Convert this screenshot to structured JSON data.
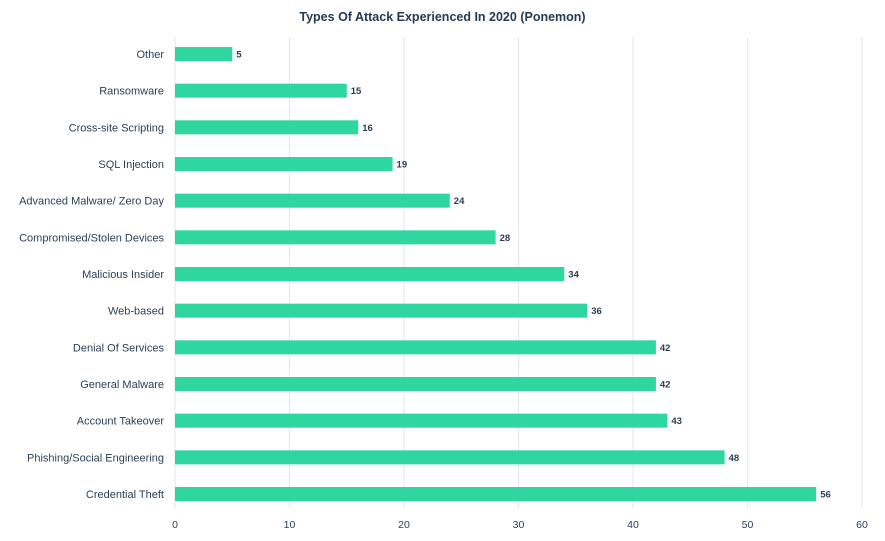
{
  "chart_data": {
    "type": "bar",
    "orientation": "horizontal",
    "title": "Types Of Attack Experienced In 2020 (Ponemon)",
    "xlabel": "",
    "ylabel": "",
    "categories": [
      "Other",
      "Ransomware",
      "Cross-site Scripting",
      "SQL Injection",
      "Advanced Malware/ Zero Day",
      "Compromised/Stolen Devices",
      "Malicious Insider",
      "Web-based",
      "Denial Of Services",
      "General Malware",
      "Account Takeover",
      "Phishing/Social Engineering",
      "Credential Theft"
    ],
    "values": [
      5,
      15,
      16,
      19,
      24,
      28,
      34,
      36,
      42,
      42,
      43,
      48,
      56
    ],
    "xlim": [
      0,
      60
    ],
    "xticks": [
      0,
      10,
      20,
      30,
      40,
      50,
      60
    ],
    "grid": true,
    "data_labels": true,
    "bar_color": "#2fd69f"
  }
}
